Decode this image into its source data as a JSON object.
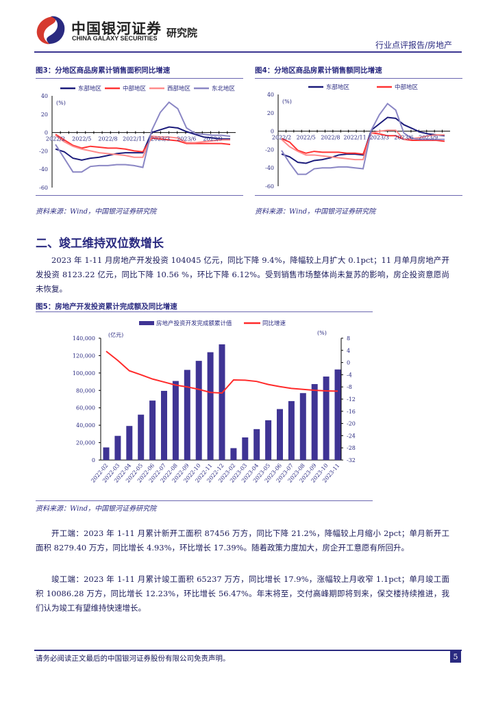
{
  "header": {
    "company_cn": "中国银河证券",
    "company_en": "CHINA GALAXY SECURITIES",
    "institute": "研究院",
    "report_type": "行业点评报告/房地产"
  },
  "colors": {
    "east": "#1a1a7a",
    "central": "#ff3333",
    "west": "#ff8a8a",
    "northeast": "#8a86c4",
    "bar": "#3f3494",
    "line": "#ff2a2a"
  },
  "figures": {
    "fig3": {
      "title": "图3：分地区商品房累计销售面积同比增速",
      "source": "资料来源：Wind，中国银河证券研究院"
    },
    "fig4": {
      "title": "图4：分地区商品房累计销售额同比增速",
      "source": "资料来源：Wind，中国银河证券研究院"
    },
    "fig5": {
      "title": "图5：房地产开发投资累计完成额及同比增速",
      "source": "资料来源：Wind，中国银河证券研究院"
    }
  },
  "section": {
    "title": "二、竣工维持双位数增长"
  },
  "paragraphs": [
    "2023 年 1-11 月房地产开发投资 104045 亿元，同比下降 9.4%，降幅较上月扩大 0.1pct；11 月单月房地产开发投资 8123.22 亿元，同比下降 10.56 %，环比下降 6.12%。受到销售市场整体尚未复苏的影响，房企投资意愿尚未恢复。",
    "开工端：2023 年 1-11 月累计新开工面积 87456 万方，同比下降 21.2%，降幅较上月缩小 2pct；单月新开工面积 8279.40 万方，同比增长 4.93%，环比增长 17.39%。随着政策力度加大，房企开工意愿有所回升。",
    "竣工端：2023 年 1-11 月累计竣工面积 65237 万方，同比增长 17.9%，涨幅较上月收窄 1.1pct；单月竣工面积 10086.28 万方，同比增长 12.23%，环比增长 56.47%。年末将至，交付高峰期即将到来，保交楼持续推进，我们认为竣工有望维持快速增长。"
  ],
  "footer": {
    "disclaimer": "请务必阅读正文最后的中国银河证券股份有限公司免责声明。",
    "page": "5"
  },
  "chart_data": [
    {
      "type": "line",
      "title": "图3：分地区商品房累计销售面积同比增速",
      "ylabel": "(%)",
      "ylim": [
        -60,
        40
      ],
      "yticks": [
        40,
        20,
        0,
        -20,
        -40,
        -60
      ],
      "xticks": [
        "2022/2",
        "2022/5",
        "2022/8",
        "2022/11",
        "2023/3",
        "2023/6",
        "2023/9"
      ],
      "x": [
        "2022/2",
        "2022/3",
        "2022/4",
        "2022/5",
        "2022/6",
        "2022/7",
        "2022/8",
        "2022/9",
        "2022/10",
        "2022/11",
        "2022/12",
        "2023/2",
        "2023/3",
        "2023/4",
        "2023/5",
        "2023/6",
        "2023/7",
        "2023/8",
        "2023/9",
        "2023/10",
        "2023/11"
      ],
      "series": [
        {
          "name": "东部地区",
          "color": "#1a1a7a",
          "values": [
            -18,
            -21,
            -28,
            -30,
            -28,
            -27,
            -25,
            -23,
            -22,
            -22,
            -22,
            0,
            3,
            6,
            5,
            1,
            -2,
            -5,
            -6,
            -7,
            -7
          ]
        },
        {
          "name": "中部地区",
          "color": "#ff3333",
          "values": [
            -2,
            -8,
            -14,
            -17,
            -15,
            -16,
            -17,
            -17,
            -18,
            -20,
            -21,
            -6,
            -7,
            -8,
            -9,
            -12,
            -12,
            -12,
            -12,
            -12,
            -13
          ]
        },
        {
          "name": "西部地区",
          "color": "#ff8a8a",
          "values": [
            -3,
            -10,
            -15,
            -18,
            -20,
            -22,
            -23,
            -24,
            -25,
            -27,
            -27,
            -4,
            -5,
            -5,
            -6,
            -11,
            -11,
            -10,
            -9,
            -8,
            -8
          ]
        },
        {
          "name": "东北地区",
          "color": "#8a86c4",
          "values": [
            -13,
            -28,
            -43,
            -43,
            -37,
            -36,
            -36,
            -35,
            -35,
            -36,
            -38,
            2,
            22,
            33,
            26,
            5,
            -1,
            -2,
            -3,
            -3,
            -4
          ]
        }
      ],
      "legend": "top"
    },
    {
      "type": "line",
      "title": "图4：分地区商品房累计销售额同比增速",
      "ylabel": "(%)",
      "ylim": [
        -60,
        40
      ],
      "yticks": [
        40,
        20,
        0,
        -20,
        -40,
        -60
      ],
      "xticks": [
        "2022/2",
        "2022/5",
        "2022/8",
        "2022/11",
        "2023/3",
        "2023/6",
        "2023/9"
      ],
      "x": [
        "2022/2",
        "2022/3",
        "2022/4",
        "2022/5",
        "2022/6",
        "2022/7",
        "2022/8",
        "2022/9",
        "2022/10",
        "2022/11",
        "2022/12",
        "2023/2",
        "2023/3",
        "2023/4",
        "2023/5",
        "2023/6",
        "2023/7",
        "2023/8",
        "2023/9",
        "2023/10",
        "2023/11"
      ],
      "series": [
        {
          "name": "东部地区",
          "color": "#1a1a7a",
          "values": [
            -25,
            -28,
            -34,
            -35,
            -32,
            -31,
            -29,
            -26,
            -25,
            -25,
            -26,
            1,
            8,
            15,
            14,
            7,
            3,
            -1,
            -3,
            -4,
            -5
          ],
          "legend": true
        },
        {
          "name": "中部地区",
          "color": "#ff3333",
          "values": [
            -8,
            -12,
            -21,
            -24,
            -22,
            -23,
            -23,
            -23,
            -24,
            -24,
            -25,
            -2,
            -3,
            -5,
            -5,
            -9,
            -10,
            -10,
            -10,
            -10,
            -11
          ],
          "legend": true
        },
        {
          "name": "",
          "color": "#ff8a8a",
          "values": [
            -9,
            -17,
            -22,
            -26,
            -26,
            -27,
            -28,
            -29,
            -30,
            -31,
            -31,
            -2,
            0,
            1,
            1,
            -9,
            -8,
            -7,
            -5,
            -4,
            -4
          ]
        },
        {
          "name": "",
          "color": "#8a86c4",
          "values": [
            -21,
            -35,
            -47,
            -47,
            -41,
            -40,
            -40,
            -39,
            -39,
            -40,
            -41,
            1,
            18,
            30,
            23,
            -2,
            -8,
            -9,
            -9,
            -9,
            -9
          ]
        }
      ],
      "legend": "top"
    },
    {
      "type": "bar",
      "title": "图5：房地产开发投资累计完成额及同比增速",
      "ylabel": "(亿元)",
      "y2label": "(%)",
      "ylim": [
        0,
        140000
      ],
      "y2lim": [
        -32,
        8
      ],
      "yticks": [
        "140,000",
        "120,000",
        "100,000",
        "80,000",
        "60,000",
        "40,000",
        "20,000",
        "0"
      ],
      "y2ticks": [
        "8",
        "4",
        "0",
        "-4",
        "-8",
        "-12",
        "-16",
        "-20",
        "-24",
        "-28",
        "-32"
      ],
      "categories": [
        "2022-02",
        "2022-03",
        "2022-04",
        "2022-05",
        "2022-06",
        "2022-07",
        "2022-08",
        "2022-09",
        "2022-10",
        "2022-11",
        "2022-12",
        "2023-02",
        "2023-03",
        "2023-04",
        "2023-05",
        "2023-06",
        "2023-07",
        "2023-08",
        "2023-09",
        "2023-10",
        "2023-11"
      ],
      "series": [
        {
          "name": "房地产投资开发完成额累计值",
          "type": "bar",
          "values": [
            14499,
            27765,
            39154,
            52134,
            68314,
            79462,
            90809,
            103559,
            113945,
            123863,
            132895,
            13669,
            25974,
            35514,
            45701,
            58550,
            67717,
            76900,
            87269,
            95922,
            104045
          ]
        },
        {
          "name": "同比增速",
          "type": "line",
          "axis": "right",
          "values": [
            3.7,
            0.7,
            -2.7,
            -4.0,
            -5.4,
            -6.4,
            -7.4,
            -8.0,
            -8.8,
            -9.8,
            -10.0,
            -5.7,
            -5.8,
            -6.2,
            -7.2,
            -7.9,
            -8.5,
            -8.8,
            -9.1,
            -9.3,
            -9.4
          ]
        }
      ],
      "legend": "top"
    }
  ]
}
